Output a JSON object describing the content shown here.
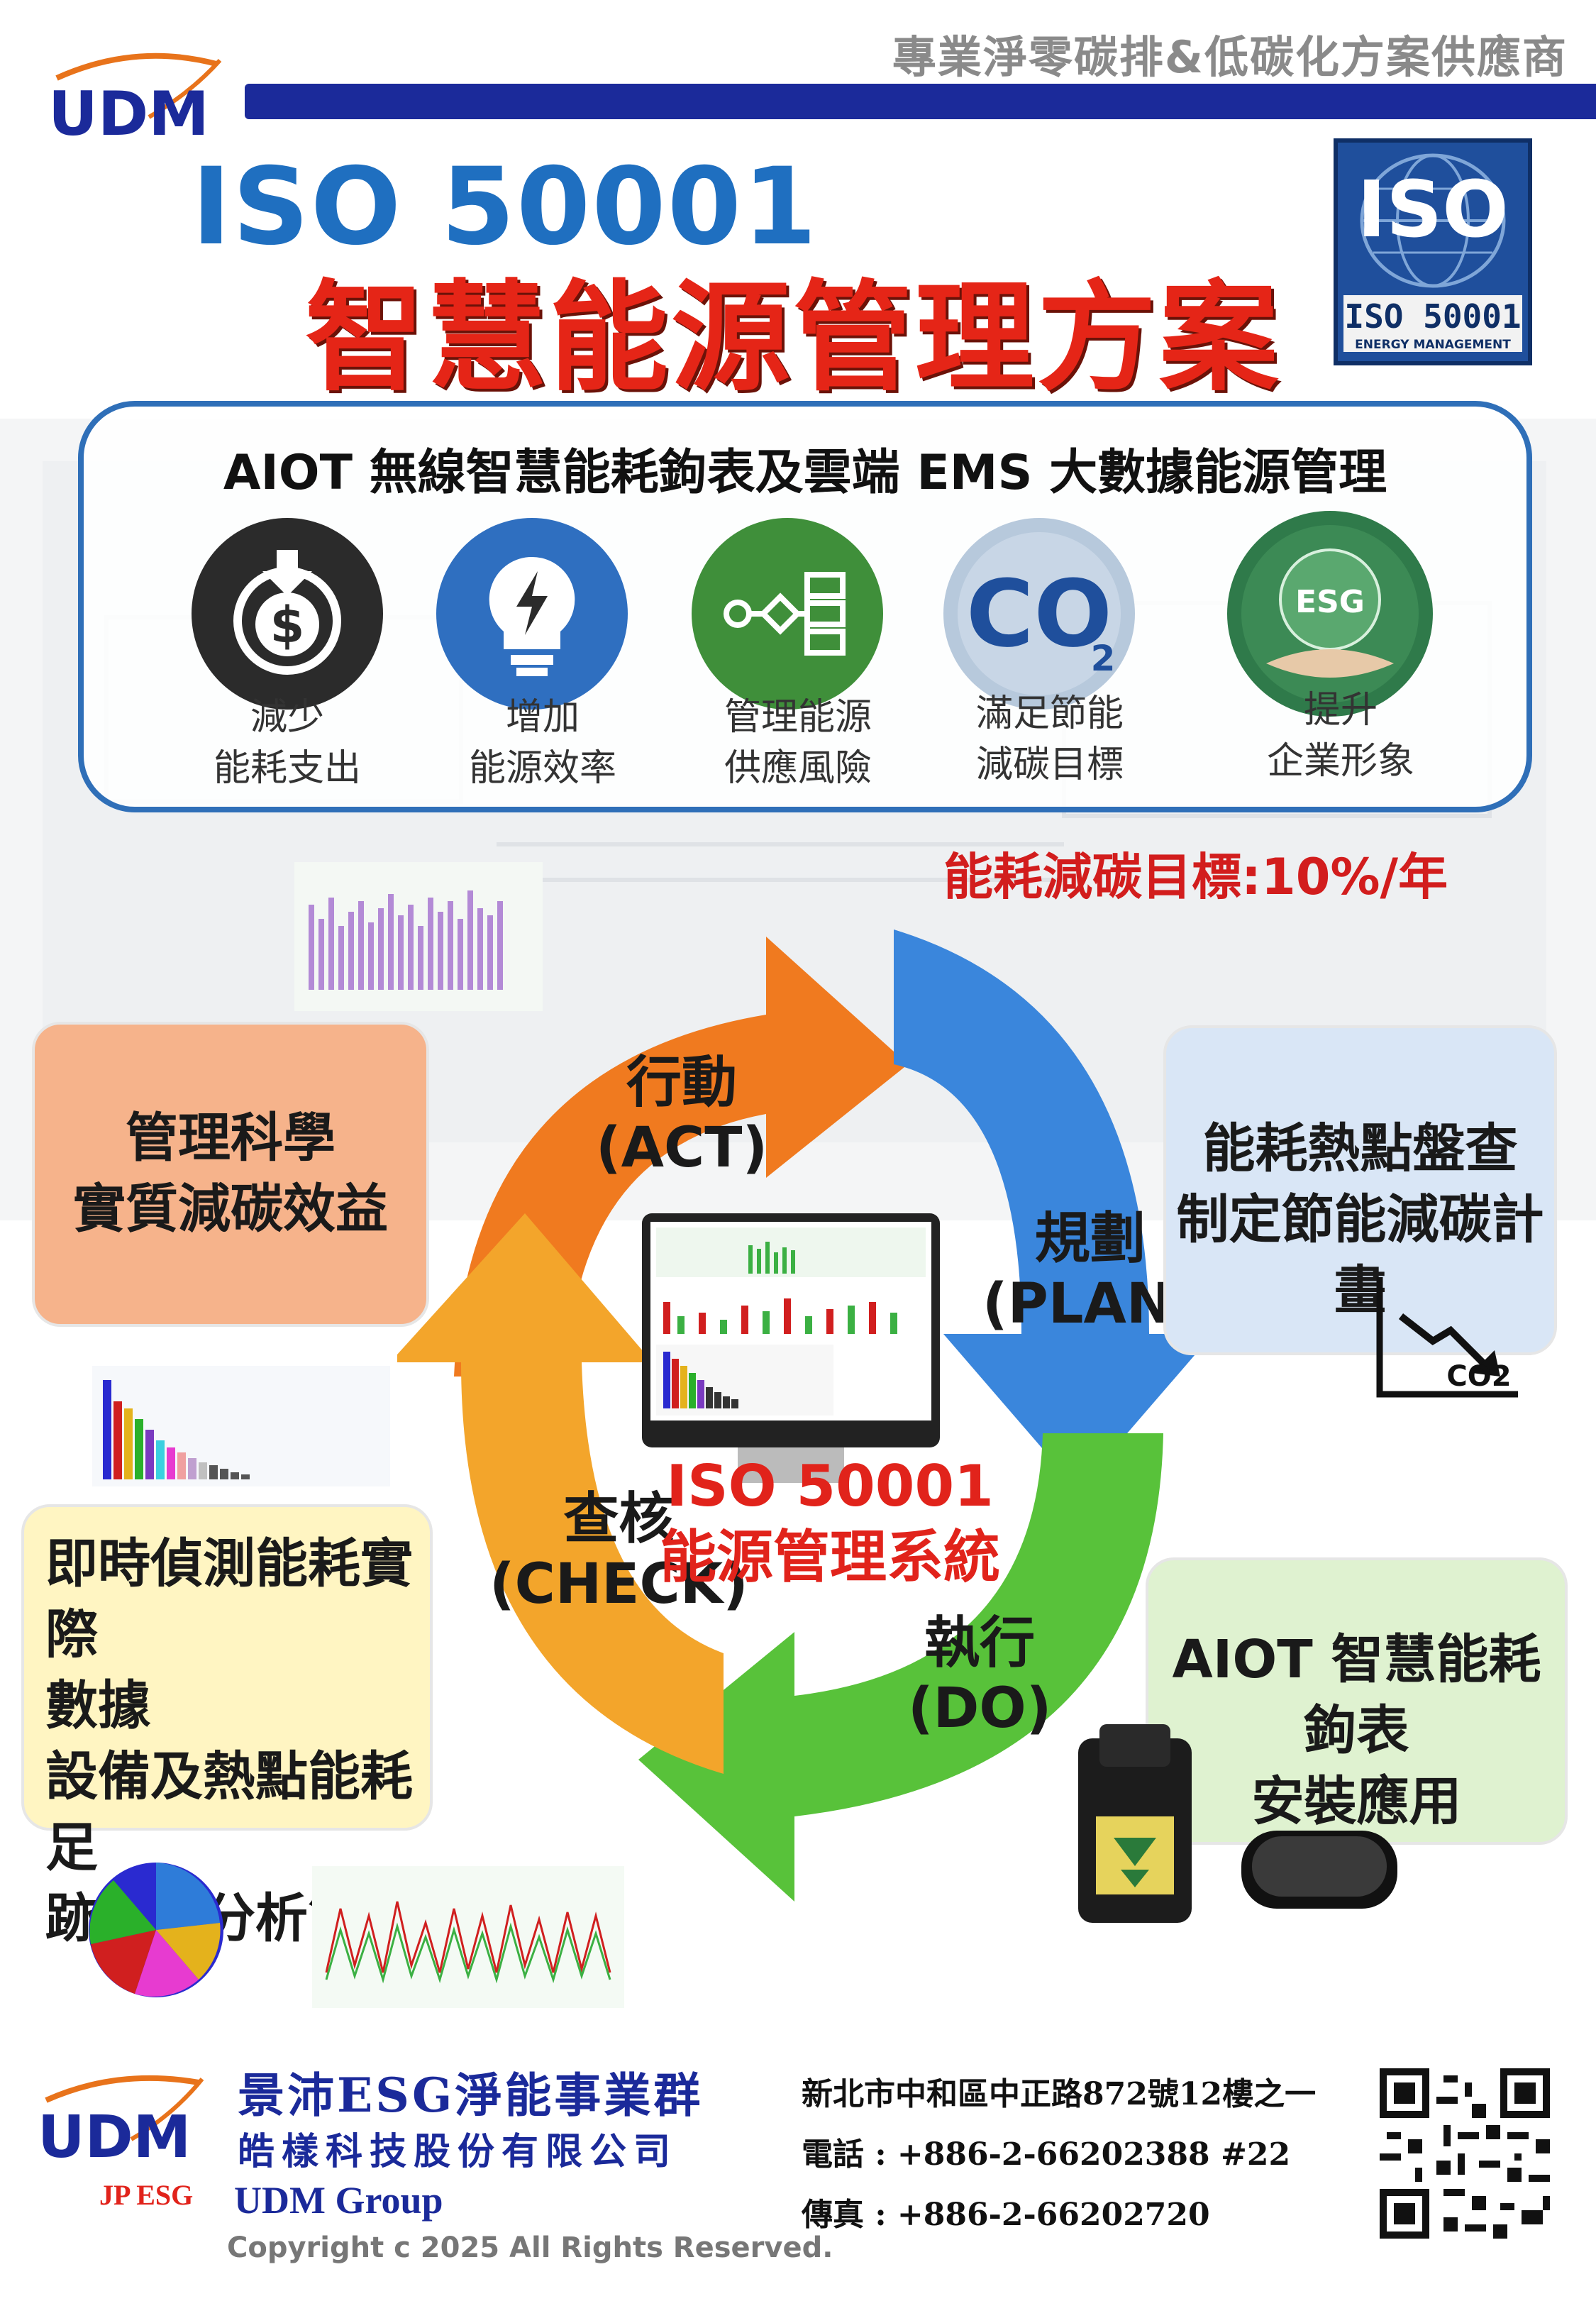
{
  "header": {
    "tagline": "專業淨零碳排&低碳化方案供應商",
    "logo_text": "UDM"
  },
  "title": {
    "line1": "ISO 50001",
    "line2": "智慧能源管理方案"
  },
  "iso_badge": {
    "label": "ISO",
    "standard": "ISO 50001",
    "sub": "ENERGY MANAGEMENT"
  },
  "panel": {
    "title": "AIOT 無線智慧能耗鉤表及雲端 EMS 大數據能源管理",
    "benefits": [
      {
        "line1": "減少",
        "line2": "能耗支出",
        "icon": "money-saving-icon",
        "color": "#2b2b2b"
      },
      {
        "line1": "增加",
        "line2": "能源效率",
        "icon": "lightbulb-icon",
        "color": "#2f6fc0"
      },
      {
        "line1": "管理能源",
        "line2": "供應風險",
        "icon": "flowchart-icon",
        "color": "#3f8f3a"
      },
      {
        "line1": "滿足節能",
        "line2": "減碳目標",
        "icon": "co2-icon",
        "color": "#1f4f9c"
      },
      {
        "line1": "提升",
        "line2": "企業形象",
        "icon": "esg-globe-icon",
        "color": "#2f7a4a"
      }
    ]
  },
  "goal": "能耗減碳目標:10%/年",
  "cycle": {
    "act": {
      "line1": "行動",
      "line2": "(ACT)"
    },
    "plan": {
      "line1": "規劃",
      "line2": "(PLAN)"
    },
    "do": {
      "line1": "執行",
      "line2": "(DO)"
    },
    "check": {
      "line1": "查核",
      "line2": "(CHECK)"
    },
    "center": {
      "line1": "ISO 50001",
      "line2": "能源管理系統"
    }
  },
  "boxes": {
    "left1": {
      "line1": "管理科學",
      "line2": "實質減碳效益"
    },
    "right1": {
      "line1": "能耗熱點盤查",
      "line2": "制定節能減碳計畫"
    },
    "left2": {
      "line1": "即時偵測能耗實際",
      "line2": "數據",
      "line3": "設備及熱點能耗足",
      "line4": "跡統計分析管理"
    },
    "right2": {
      "line1": "AIOT 智慧能耗鉤表",
      "line2": "安裝應用"
    }
  },
  "co2_label": "CO2",
  "footer": {
    "company": "景沛ESG淨能事業群",
    "subsidiary": "皓樣科技股份有限公司",
    "group": "UDM Group",
    "jp_esg": "JP ESG",
    "copyright": "Copyright c 2025 All Rights Reserved.",
    "address": "新北市中和區中正路872號12樓之一",
    "phone": "電話 : +886-2-66202388 #22",
    "fax": "傳真 : +886-2-66202720"
  }
}
